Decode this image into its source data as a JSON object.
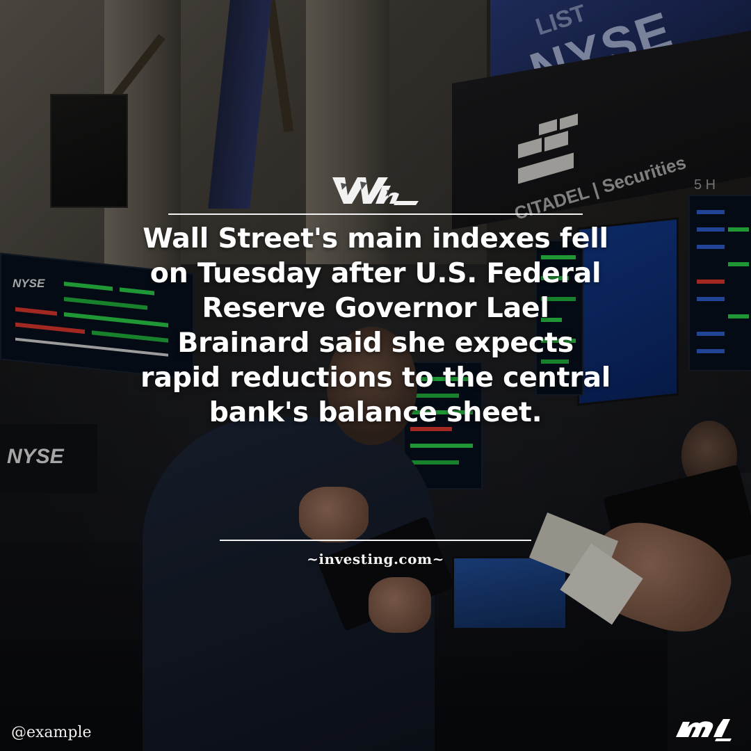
{
  "background": {
    "description_icon": "trading-floor-photo",
    "signs": {
      "nyse_top_right": "NYSE",
      "list_top_right": "LIST",
      "citadel": "CITADEL | Securities",
      "booth_label": "5 H",
      "nyse_left_board": "NYSE",
      "nyse_left_wall": "NYSE"
    }
  },
  "post": {
    "headline": "Wall Street's main indexes fell on Tuesday after U.S. Federal Reserve Governor Lael Brainard said she expects rapid reductions to the central bank's balance sheet.",
    "source": "~investing.com~",
    "handle": "@example"
  },
  "brand": {
    "mark_icon": "brand-monogram-icon",
    "corner_icon": "brand-m-logo-icon",
    "text_color": "#ffffff",
    "rule_color": "#f2f2f2"
  }
}
